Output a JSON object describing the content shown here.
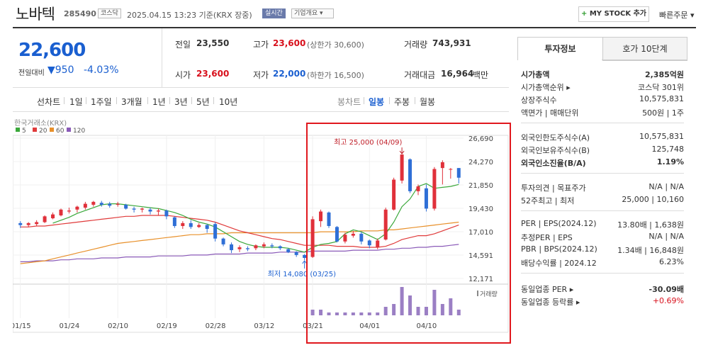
{
  "header": {
    "name": "노바텍",
    "code": "285490",
    "market_badge": "코스닥",
    "datetime": "2025.04.15 13:23 기준(KRX 장중)",
    "realtime_badge": "실시간",
    "company_badge": "기업개요 ▾",
    "my_stock_label": "MY STOCK 추가",
    "my_stock_plus": "+",
    "quick_order": "빠른주문 ▾"
  },
  "quote": {
    "price": "22,600",
    "change_label": "전일대비",
    "change_value": "▼950",
    "change_pct": "-4.03%",
    "prev_label": "전일",
    "prev_value": "23,550",
    "high_label": "고가",
    "high_value": "23,600",
    "high_limit": "(상한가 30,600)",
    "volume_label": "거래량",
    "volume_value": "743,931",
    "open_label": "시가",
    "open_value": "23,600",
    "low_label": "저가",
    "low_value": "22,000",
    "low_limit": "(하한가 16,500)",
    "amount_label": "거래대금",
    "amount_value": "16,964",
    "amount_unit": "백만"
  },
  "period_tabs": [
    "선차트",
    "1일",
    "1주일",
    "3개월",
    "1년",
    "3년",
    "5년",
    "10년"
  ],
  "candle_tabs": [
    "봉차트",
    "일봉",
    "주봉",
    "월봉"
  ],
  "chart_data": {
    "type": "candlestick",
    "source_label": "한국거래소(KRX)",
    "ma_legend": [
      {
        "name": "5",
        "color": "#3aa83a"
      },
      {
        "name": "20",
        "color": "#e03a3a"
      },
      {
        "name": "60",
        "color": "#e8902a"
      },
      {
        "name": "120",
        "color": "#8a5ab8"
      }
    ],
    "y_ticks": [
      "26,690",
      "24,270",
      "21,850",
      "19,430",
      "17,010",
      "14,591",
      "12,171"
    ],
    "ylim": [
      12171,
      26690
    ],
    "x_ticks": [
      "01/15",
      "01/24",
      "02/10",
      "02/19",
      "02/28",
      "03/12",
      "03/21",
      "04/01",
      "04/10"
    ],
    "x_tick_index": [
      0,
      6,
      12,
      18,
      24,
      30,
      36,
      43,
      50
    ],
    "candles": [
      [
        17900,
        17700,
        18100,
        17400
      ],
      [
        17700,
        17900,
        18000,
        17500
      ],
      [
        17800,
        18000,
        18200,
        17600
      ],
      [
        18000,
        18600,
        18700,
        17900
      ],
      [
        18400,
        18800,
        19000,
        18300
      ],
      [
        18700,
        19300,
        19400,
        18600
      ],
      [
        19100,
        19200,
        19500,
        18900
      ],
      [
        19300,
        19600,
        19700,
        19000
      ],
      [
        19500,
        19900,
        20100,
        19300
      ],
      [
        19800,
        20100,
        20200,
        19600
      ],
      [
        20000,
        19800,
        20200,
        19600
      ],
      [
        19900,
        19700,
        20100,
        19500
      ],
      [
        19800,
        19900,
        20100,
        19600
      ],
      [
        19800,
        19400,
        19900,
        19300
      ],
      [
        19400,
        19300,
        19600,
        19000
      ],
      [
        19300,
        19400,
        19500,
        19000
      ],
      [
        19300,
        19100,
        19500,
        18800
      ],
      [
        19100,
        19200,
        19400,
        18700
      ],
      [
        19200,
        18600,
        19300,
        18300
      ],
      [
        18500,
        17600,
        18600,
        17400
      ],
      [
        17600,
        17900,
        18100,
        17300
      ],
      [
        17900,
        17500,
        18200,
        17300
      ],
      [
        17500,
        17700,
        17900,
        17400
      ],
      [
        17700,
        17300,
        17800,
        16900
      ],
      [
        17800,
        16300,
        18000,
        16000
      ],
      [
        16300,
        15700,
        16400,
        15500
      ],
      [
        15700,
        15100,
        15900,
        14800
      ],
      [
        15200,
        15400,
        15600,
        14900
      ],
      [
        15300,
        15200,
        15500,
        15000
      ],
      [
        15300,
        15600,
        15700,
        15100
      ],
      [
        15500,
        15700,
        15900,
        15300
      ],
      [
        15600,
        15500,
        15800,
        15300
      ],
      [
        15500,
        15300,
        15600,
        15100
      ],
      [
        15200,
        14900,
        15300,
        14800
      ],
      [
        14900,
        14600,
        15000,
        14400
      ],
      [
        14600,
        14300,
        14700,
        14080
      ],
      [
        14400,
        18300,
        18600,
        14300
      ],
      [
        18100,
        19100,
        19300,
        17500
      ],
      [
        19000,
        17600,
        19100,
        17400
      ],
      [
        17500,
        16000,
        17600,
        15900
      ],
      [
        16000,
        16700,
        16900,
        15800
      ],
      [
        16600,
        16800,
        17100,
        16400
      ],
      [
        16800,
        16000,
        17000,
        15700
      ],
      [
        16100,
        15600,
        16200,
        15300
      ],
      [
        15400,
        16100,
        16300,
        15200
      ],
      [
        16200,
        19300,
        19500,
        16100
      ],
      [
        19300,
        22400,
        22600,
        19200
      ],
      [
        22300,
        25000,
        25000,
        22000
      ],
      [
        24500,
        21200,
        24600,
        21000
      ],
      [
        21200,
        21700,
        21900,
        20800
      ],
      [
        21500,
        19400,
        21900,
        19100
      ],
      [
        19400,
        23500,
        23700,
        19200
      ],
      [
        23600,
        24200,
        24400,
        21900
      ],
      [
        23500,
        23500,
        23600,
        22500
      ],
      [
        23600,
        22600,
        23600,
        22000
      ]
    ],
    "ma5": [
      null,
      null,
      null,
      null,
      17900,
      18200,
      18500,
      18900,
      19200,
      19500,
      19800,
      19900,
      19900,
      19800,
      19700,
      19600,
      19500,
      19400,
      19200,
      19000,
      18700,
      18300,
      18000,
      17800,
      17500,
      17000,
      16500,
      16000,
      15700,
      15500,
      15400,
      15400,
      15400,
      15300,
      15100,
      14900,
      15400,
      15700,
      15800,
      16000,
      16800,
      17200,
      17000,
      16600,
      16200,
      16800,
      18000,
      19600,
      20400,
      21700,
      22000,
      21500,
      21600,
      21700,
      21900
    ],
    "ma20": [
      17500,
      17500,
      17600,
      17600,
      17700,
      17800,
      17900,
      18000,
      18100,
      18200,
      18300,
      18400,
      18500,
      18600,
      18600,
      18700,
      18700,
      18700,
      18700,
      18600,
      18500,
      18400,
      18300,
      18200,
      18000,
      17700,
      17400,
      17100,
      16900,
      16700,
      16500,
      16300,
      16200,
      16000,
      15800,
      15600,
      15600,
      15600,
      15600,
      15500,
      15500,
      15500,
      15400,
      15400,
      15400,
      15500,
      15800,
      16200,
      16400,
      16600,
      16600,
      16800,
      17100,
      17400,
      17700
    ],
    "ma60": [
      13700,
      13800,
      13900,
      14000,
      14200,
      14400,
      14600,
      14800,
      15000,
      15200,
      15400,
      15600,
      15800,
      15900,
      16000,
      16100,
      16200,
      16300,
      16400,
      16500,
      16600,
      16700,
      16700,
      16800,
      16800,
      16800,
      16900,
      16900,
      16900,
      16900,
      16900,
      16900,
      16900,
      16900,
      16900,
      16900,
      16900,
      17000,
      17000,
      17000,
      17000,
      17000,
      17100,
      17100,
      17100,
      17200,
      17200,
      17300,
      17400,
      17500,
      17600,
      17700,
      17800,
      17900,
      18000
    ],
    "ma120": [
      13900,
      13900,
      14000,
      14000,
      14000,
      14100,
      14100,
      14200,
      14200,
      14200,
      14300,
      14300,
      14300,
      14400,
      14400,
      14400,
      14400,
      14500,
      14500,
      14500,
      14500,
      14600,
      14600,
      14600,
      14700,
      14700,
      14700,
      14700,
      14800,
      14800,
      14800,
      14800,
      14900,
      14900,
      14900,
      14900,
      15000,
      15000,
      15000,
      15000,
      15000,
      15100,
      15100,
      15100,
      15100,
      15200,
      15200,
      15300,
      15300,
      15400,
      15400,
      15500,
      15500,
      15600,
      15700
    ],
    "volume": [
      0,
      0,
      0,
      0,
      0,
      0,
      0,
      0,
      0,
      0,
      0,
      0,
      0,
      0,
      0,
      0,
      0,
      0,
      0,
      0,
      0,
      0,
      0,
      0,
      0,
      0,
      0,
      0,
      0,
      0,
      0,
      0,
      0,
      0,
      0,
      0,
      2,
      2,
      1,
      1,
      1,
      1,
      1,
      1,
      1,
      3,
      4,
      10,
      7,
      3,
      3,
      9,
      4,
      6,
      2
    ],
    "volume_label": "거래량",
    "annotations": {
      "high_text": "최고 25,000 (04/09)",
      "low_text": "최저 14,080 (03/25)"
    }
  },
  "invest": {
    "tab_info": "투자정보",
    "tab_ask": "호가 10단계",
    "rows1": [
      {
        "k": "시가총액",
        "v": "2,385억원",
        "bold": true
      },
      {
        "k": "시가총액순위 ▸",
        "v": "코스닥 301위"
      },
      {
        "k": "상장주식수",
        "v": "10,575,831"
      },
      {
        "k": "액면가 | 매매단위",
        "v": "500원 | 1주"
      }
    ],
    "rows2": [
      {
        "k": "외국인한도주식수(A)",
        "v": "10,575,831"
      },
      {
        "k": "외국인보유주식수(B)",
        "v": "125,748"
      },
      {
        "k": "외국인소진율(B/A)",
        "v": "1.19%",
        "bold": true
      }
    ],
    "rows3": [
      {
        "k": "투자의견 | 목표주가",
        "v": "N/A | N/A"
      },
      {
        "k": "52주최고 | 최저",
        "v": "25,000 | 10,160"
      }
    ],
    "rows4": [
      {
        "k": "PER | EPS(2024.12)",
        "v": "13.80배 | 1,638원"
      },
      {
        "k": "추정PER | EPS",
        "v": "N/A | N/A"
      },
      {
        "k": "PBR | BPS(2024.12)",
        "v": "1.34배 | 16,848원"
      },
      {
        "k": "배당수익률 | 2024.12",
        "v": "6.23%"
      }
    ],
    "rows5": [
      {
        "k": "동일업종 PER ▸",
        "v": "-30.09배"
      },
      {
        "k": "동일업종 등락률 ▸",
        "v": "+0.69%"
      }
    ]
  },
  "colors": {
    "up": "#e0303a",
    "down": "#2f6fd6",
    "accent_box": "#e0181e"
  }
}
